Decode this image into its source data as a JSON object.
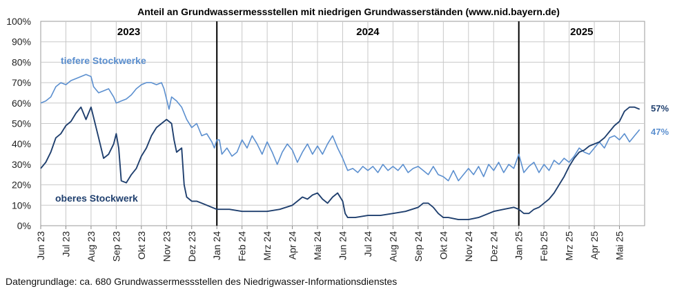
{
  "chart_data": {
    "type": "line",
    "title": "Anteil an Grundwassermessstellen mit niedrigen Grundwasserständen (www.nid.bayern.de)",
    "source_note": "Datengrundlage: ca. 680 Grundwassermessstellen des Niedrigwasser-Informationsdienstes",
    "ylim": [
      0,
      100
    ],
    "y_ticks": [
      "0%",
      "10%",
      "20%",
      "30%",
      "40%",
      "50%",
      "60%",
      "70%",
      "80%",
      "90%",
      "100%"
    ],
    "x_ticks": [
      "Jun 23",
      "Jul 23",
      "Aug 23",
      "Sep 23",
      "Okt 23",
      "Nov 23",
      "Dez 23",
      "Jan 24",
      "Feb 24",
      "Mrz 24",
      "Apr 24",
      "Mai 24",
      "Jun 24",
      "Jul 24",
      "Aug 24",
      "Sep 24",
      "Okt 24",
      "Nov 24",
      "Dez 24",
      "Jan 25",
      "Feb 25",
      "Mrz 25",
      "Apr 25",
      "Mai 25"
    ],
    "years": [
      {
        "label": "2023",
        "start_month": 0
      },
      {
        "label": "2024",
        "start_month": 7
      },
      {
        "label": "2025",
        "start_month": 19
      }
    ],
    "year_dividers": [
      "Jan 24",
      "Jan 25"
    ],
    "grid": true,
    "x_unit": "months since Jun 23",
    "series": [
      {
        "name": "tiefere Stockwerke",
        "color": "#5b8fcf",
        "end_label": "47%",
        "points": [
          [
            0,
            60
          ],
          [
            0.2,
            61
          ],
          [
            0.4,
            63
          ],
          [
            0.6,
            68
          ],
          [
            0.8,
            70
          ],
          [
            1.0,
            69
          ],
          [
            1.2,
            71
          ],
          [
            1.4,
            72
          ],
          [
            1.6,
            73
          ],
          [
            1.8,
            74
          ],
          [
            2.0,
            73
          ],
          [
            2.1,
            68
          ],
          [
            2.3,
            65
          ],
          [
            2.5,
            66
          ],
          [
            2.7,
            67
          ],
          [
            2.9,
            63
          ],
          [
            3.0,
            60
          ],
          [
            3.2,
            61
          ],
          [
            3.4,
            62
          ],
          [
            3.6,
            64
          ],
          [
            3.8,
            67
          ],
          [
            4.0,
            69
          ],
          [
            4.2,
            70
          ],
          [
            4.4,
            70
          ],
          [
            4.6,
            69
          ],
          [
            4.8,
            70
          ],
          [
            4.9,
            67
          ],
          [
            5.0,
            62
          ],
          [
            5.1,
            57
          ],
          [
            5.2,
            63
          ],
          [
            5.4,
            61
          ],
          [
            5.6,
            58
          ],
          [
            5.8,
            52
          ],
          [
            6.0,
            48
          ],
          [
            6.2,
            50
          ],
          [
            6.4,
            44
          ],
          [
            6.6,
            45
          ],
          [
            6.8,
            41
          ],
          [
            6.9,
            38
          ],
          [
            7.0,
            42
          ],
          [
            7.1,
            42
          ],
          [
            7.2,
            35
          ],
          [
            7.4,
            38
          ],
          [
            7.6,
            34
          ],
          [
            7.8,
            36
          ],
          [
            8.0,
            42
          ],
          [
            8.2,
            38
          ],
          [
            8.4,
            44
          ],
          [
            8.6,
            40
          ],
          [
            8.8,
            35
          ],
          [
            9.0,
            41
          ],
          [
            9.2,
            36
          ],
          [
            9.4,
            30
          ],
          [
            9.6,
            36
          ],
          [
            9.8,
            40
          ],
          [
            10.0,
            37
          ],
          [
            10.2,
            31
          ],
          [
            10.4,
            36
          ],
          [
            10.6,
            40
          ],
          [
            10.8,
            35
          ],
          [
            11.0,
            39
          ],
          [
            11.2,
            35
          ],
          [
            11.4,
            40
          ],
          [
            11.6,
            44
          ],
          [
            11.8,
            38
          ],
          [
            12.0,
            33
          ],
          [
            12.1,
            30
          ],
          [
            12.2,
            27
          ],
          [
            12.4,
            28
          ],
          [
            12.6,
            26
          ],
          [
            12.8,
            29
          ],
          [
            13.0,
            27
          ],
          [
            13.2,
            29
          ],
          [
            13.4,
            26
          ],
          [
            13.6,
            30
          ],
          [
            13.8,
            27
          ],
          [
            14.0,
            29
          ],
          [
            14.2,
            27
          ],
          [
            14.4,
            30
          ],
          [
            14.6,
            26
          ],
          [
            14.8,
            28
          ],
          [
            15.0,
            29
          ],
          [
            15.2,
            27
          ],
          [
            15.4,
            25
          ],
          [
            15.6,
            29
          ],
          [
            15.8,
            25
          ],
          [
            16.0,
            24
          ],
          [
            16.2,
            22
          ],
          [
            16.4,
            27
          ],
          [
            16.6,
            22
          ],
          [
            16.8,
            25
          ],
          [
            17.0,
            28
          ],
          [
            17.2,
            25
          ],
          [
            17.4,
            29
          ],
          [
            17.6,
            24
          ],
          [
            17.8,
            30
          ],
          [
            18.0,
            27
          ],
          [
            18.2,
            31
          ],
          [
            18.4,
            26
          ],
          [
            18.6,
            30
          ],
          [
            18.8,
            28
          ],
          [
            19.0,
            35
          ],
          [
            19.2,
            26
          ],
          [
            19.4,
            29
          ],
          [
            19.6,
            31
          ],
          [
            19.8,
            26
          ],
          [
            20.0,
            30
          ],
          [
            20.2,
            27
          ],
          [
            20.4,
            32
          ],
          [
            20.6,
            30
          ],
          [
            20.8,
            33
          ],
          [
            21.0,
            31
          ],
          [
            21.2,
            34
          ],
          [
            21.4,
            38
          ],
          [
            21.6,
            36
          ],
          [
            21.8,
            35
          ],
          [
            22.0,
            38
          ],
          [
            22.2,
            41
          ],
          [
            22.4,
            38
          ],
          [
            22.6,
            43
          ],
          [
            22.8,
            44
          ],
          [
            23.0,
            42
          ],
          [
            23.2,
            45
          ],
          [
            23.4,
            41
          ],
          [
            23.6,
            44
          ],
          [
            23.8,
            47
          ]
        ]
      },
      {
        "name": "oberes Stockwerk",
        "color": "#1f3f6e",
        "end_label": "57%",
        "points": [
          [
            0,
            28
          ],
          [
            0.2,
            31
          ],
          [
            0.4,
            36
          ],
          [
            0.6,
            43
          ],
          [
            0.8,
            45
          ],
          [
            1.0,
            49
          ],
          [
            1.2,
            51
          ],
          [
            1.4,
            55
          ],
          [
            1.6,
            58
          ],
          [
            1.8,
            52
          ],
          [
            2.0,
            58
          ],
          [
            2.1,
            53
          ],
          [
            2.3,
            43
          ],
          [
            2.5,
            33
          ],
          [
            2.7,
            35
          ],
          [
            2.9,
            40
          ],
          [
            3.0,
            45
          ],
          [
            3.1,
            38
          ],
          [
            3.2,
            22
          ],
          [
            3.4,
            21
          ],
          [
            3.6,
            25
          ],
          [
            3.8,
            28
          ],
          [
            4.0,
            34
          ],
          [
            4.2,
            38
          ],
          [
            4.4,
            44
          ],
          [
            4.6,
            48
          ],
          [
            4.8,
            50
          ],
          [
            5.0,
            52
          ],
          [
            5.2,
            50
          ],
          [
            5.3,
            42
          ],
          [
            5.4,
            36
          ],
          [
            5.6,
            38
          ],
          [
            5.7,
            20
          ],
          [
            5.8,
            14
          ],
          [
            6.0,
            12
          ],
          [
            6.2,
            12
          ],
          [
            6.4,
            11
          ],
          [
            6.6,
            10
          ],
          [
            6.8,
            9
          ],
          [
            7.0,
            8
          ],
          [
            7.5,
            8
          ],
          [
            8.0,
            7
          ],
          [
            8.5,
            7
          ],
          [
            9.0,
            7
          ],
          [
            9.5,
            8
          ],
          [
            10.0,
            10
          ],
          [
            10.2,
            12
          ],
          [
            10.4,
            14
          ],
          [
            10.6,
            13
          ],
          [
            10.8,
            15
          ],
          [
            11.0,
            16
          ],
          [
            11.2,
            13
          ],
          [
            11.4,
            11
          ],
          [
            11.6,
            14
          ],
          [
            11.8,
            16
          ],
          [
            12.0,
            12
          ],
          [
            12.1,
            6
          ],
          [
            12.2,
            4
          ],
          [
            12.5,
            4
          ],
          [
            13.0,
            5
          ],
          [
            13.5,
            5
          ],
          [
            14.0,
            6
          ],
          [
            14.5,
            7
          ],
          [
            15.0,
            9
          ],
          [
            15.2,
            11
          ],
          [
            15.4,
            11
          ],
          [
            15.6,
            9
          ],
          [
            15.8,
            6
          ],
          [
            16.0,
            4
          ],
          [
            16.2,
            4
          ],
          [
            16.6,
            3
          ],
          [
            17.0,
            3
          ],
          [
            17.4,
            4
          ],
          [
            17.8,
            6
          ],
          [
            18.0,
            7
          ],
          [
            18.4,
            8
          ],
          [
            18.8,
            9
          ],
          [
            19.0,
            8
          ],
          [
            19.2,
            6
          ],
          [
            19.4,
            6
          ],
          [
            19.6,
            8
          ],
          [
            19.8,
            9
          ],
          [
            20.0,
            11
          ],
          [
            20.2,
            13
          ],
          [
            20.4,
            16
          ],
          [
            20.6,
            20
          ],
          [
            20.8,
            24
          ],
          [
            21.0,
            29
          ],
          [
            21.2,
            33
          ],
          [
            21.4,
            36
          ],
          [
            21.6,
            37
          ],
          [
            21.8,
            39
          ],
          [
            22.0,
            40
          ],
          [
            22.2,
            41
          ],
          [
            22.4,
            43
          ],
          [
            22.6,
            46
          ],
          [
            22.8,
            49
          ],
          [
            23.0,
            51
          ],
          [
            23.2,
            56
          ],
          [
            23.4,
            58
          ],
          [
            23.6,
            58
          ],
          [
            23.8,
            57
          ]
        ]
      }
    ],
    "series_labels": [
      "tiefere Stockwerke",
      "oberes Stockwerk"
    ]
  }
}
